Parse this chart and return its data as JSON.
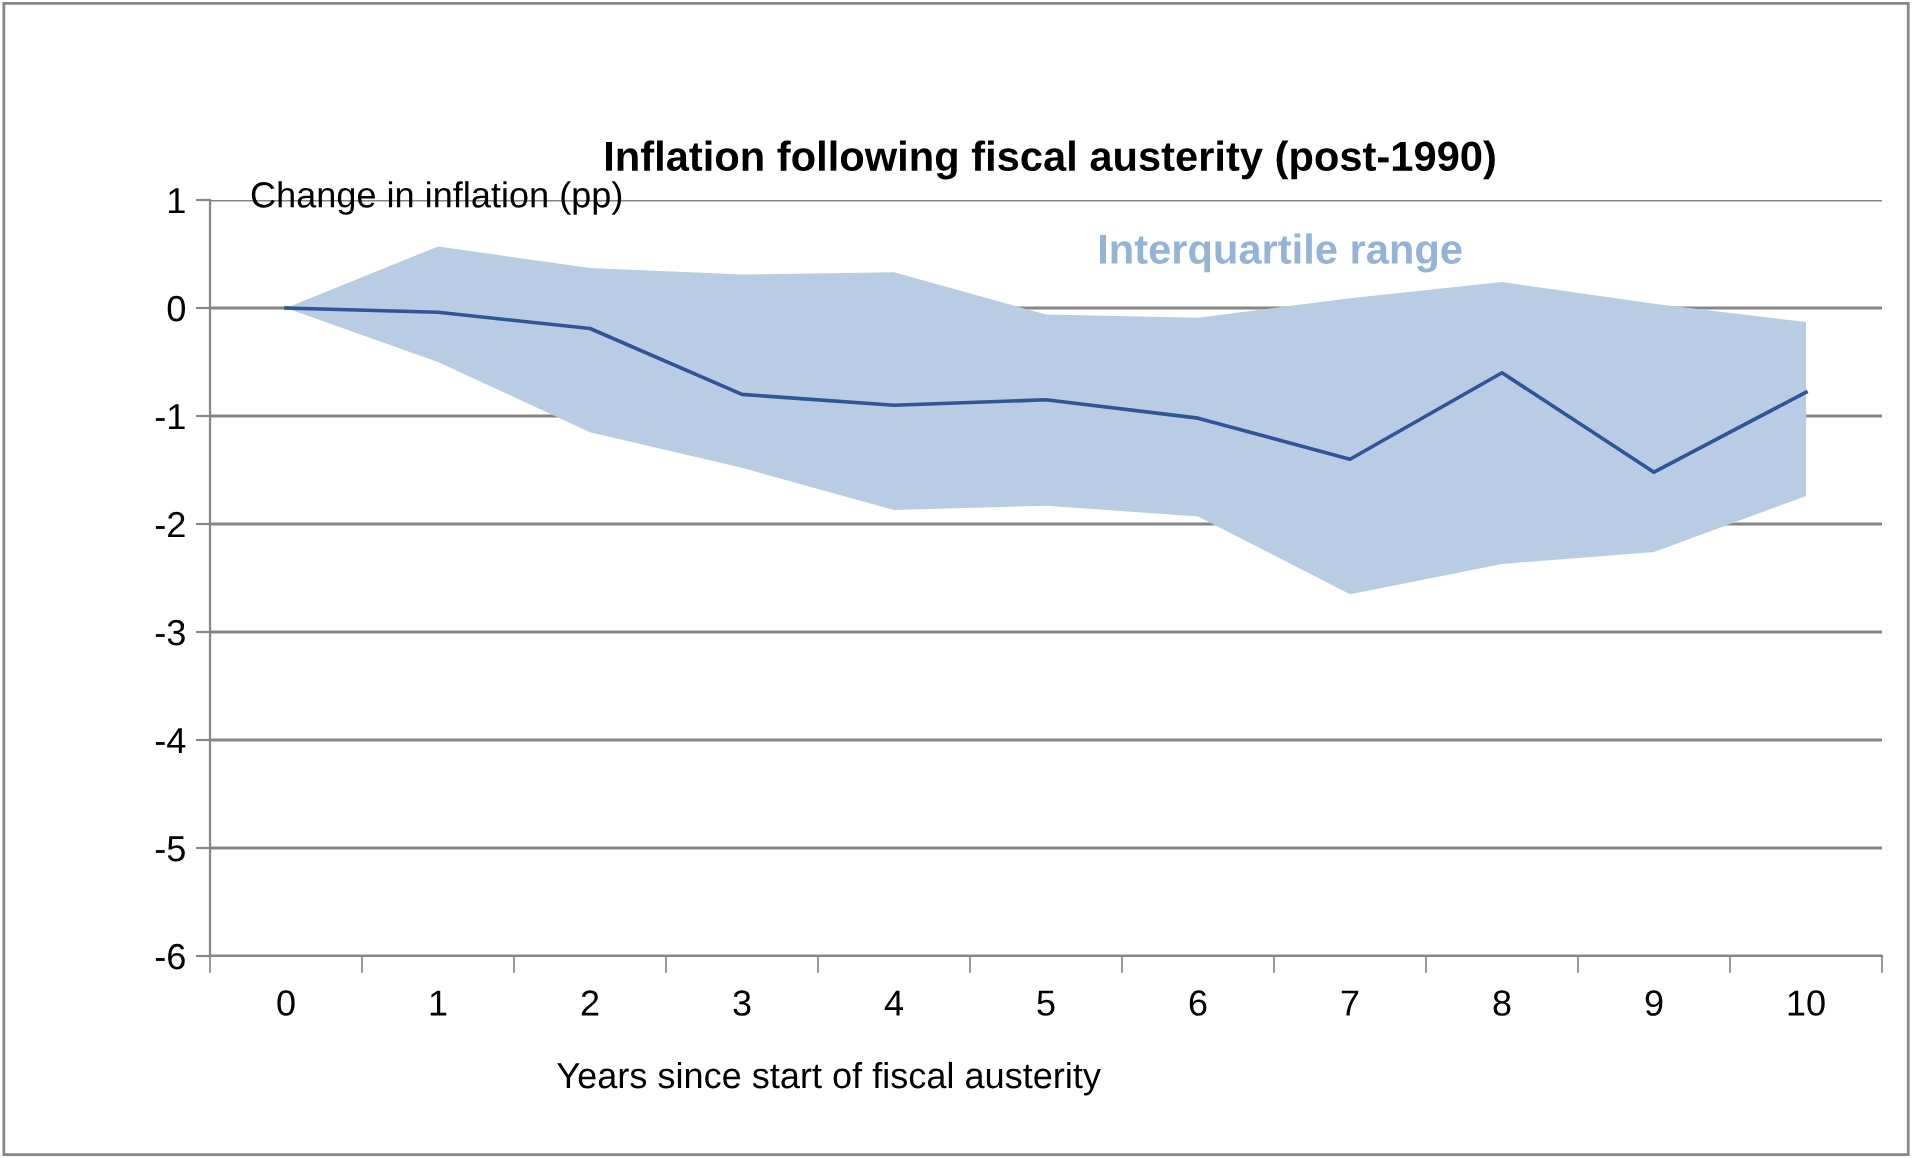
{
  "chart_data": {
    "type": "line",
    "title": "Inflation following fiscal austerity (post-1990)",
    "ylabel": "Change in inflation (pp)",
    "xlabel": "Years since start of fiscal austerity",
    "categories": [
      "0",
      "1",
      "2",
      "3",
      "4",
      "5",
      "6",
      "7",
      "8",
      "9",
      "10"
    ],
    "series": [
      {
        "color": "#2f5597",
        "values": [
          0,
          -0.04,
          -0.19,
          -0.8,
          -0.9,
          -0.85,
          -1.02,
          -1.4,
          -0.6,
          -1.52,
          -0.78
        ],
        "lower": [
          0,
          -0.5,
          -1.15,
          -1.48,
          -1.87,
          -1.83,
          -1.93,
          -2.65,
          -2.37,
          -2.26,
          -1.74
        ],
        "upper": [
          0,
          0.57,
          0.37,
          0.31,
          0.33,
          -0.06,
          -0.09,
          0.09,
          0.24,
          0.04,
          -0.13
        ]
      }
    ],
    "annotations": [
      "Interquartile range"
    ],
    "ylim": [
      -6,
      1
    ],
    "yticks": [
      -6,
      -5,
      -4,
      -3,
      -2,
      -1,
      0,
      1
    ],
    "grid": "y",
    "legend": false,
    "marker": "none",
    "line_style": "solid"
  }
}
